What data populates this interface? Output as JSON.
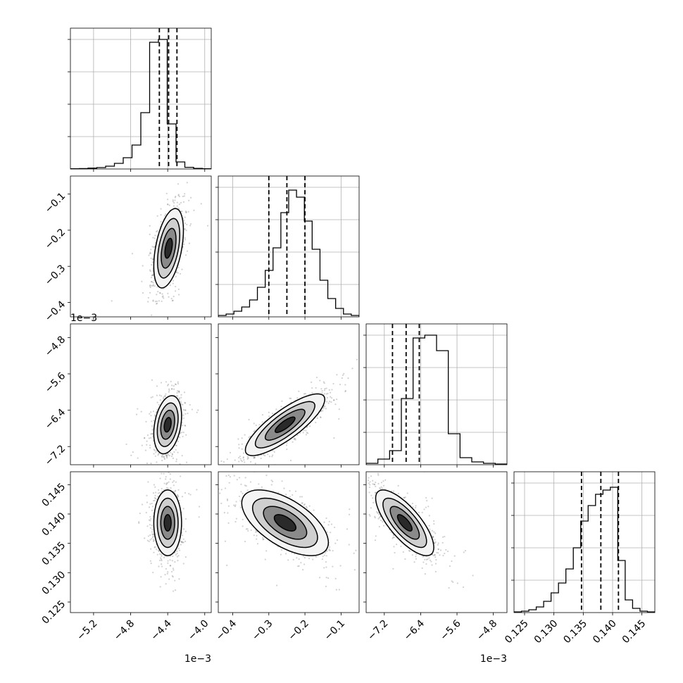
{
  "chart_data": {
    "type": "corner",
    "n_params": 4,
    "colors": {
      "line": "#000000",
      "grid": "#b0b0b0",
      "scatter": "#000000",
      "fill_dark": "#000000",
      "fill_light": "#f2f2f2"
    },
    "params": [
      {
        "range": [
          -5.45,
          -3.93
        ],
        "ticks": [
          -5.2,
          -4.8,
          -4.4,
          -4.0
        ],
        "tick_labels": [
          "−5.2",
          "−4.8",
          "−4.4",
          "−4.0"
        ],
        "offset_label": "1e−3",
        "quantiles": [
          -4.49,
          -4.39,
          -4.3
        ],
        "hist": [
          0.002,
          0.003,
          0.006,
          0.01,
          0.02,
          0.04,
          0.08,
          0.17,
          0.4,
          0.9,
          0.92,
          0.32,
          0.05,
          0.012,
          0.004,
          0.002
        ]
      },
      {
        "range": [
          -0.44,
          -0.05
        ],
        "ticks": [
          -0.4,
          -0.3,
          -0.2,
          -0.1
        ],
        "tick_labels": [
          "−0.4",
          "−0.3",
          "−0.2",
          "−0.1"
        ],
        "offset_label": "",
        "quantiles": [
          -0.3,
          -0.25,
          -0.2
        ],
        "hist": [
          0.01,
          0.02,
          0.04,
          0.07,
          0.12,
          0.21,
          0.33,
          0.49,
          0.74,
          0.9,
          0.85,
          0.68,
          0.48,
          0.26,
          0.13,
          0.06,
          0.02,
          0.01
        ]
      },
      {
        "range": [
          -7.6,
          -4.5
        ],
        "ticks": [
          -7.2,
          -6.4,
          -5.6,
          -4.8
        ],
        "tick_labels": [
          "−7.2",
          "−6.4",
          "−5.6",
          "−4.8"
        ],
        "offset_label": "1e−3",
        "quantiles": [
          -7.02,
          -6.72,
          -6.43
        ],
        "hist": [
          0.01,
          0.04,
          0.1,
          0.47,
          0.9,
          0.92,
          0.81,
          0.22,
          0.05,
          0.02,
          0.01,
          0.005
        ]
      },
      {
        "range": [
          0.1232,
          0.1472
        ],
        "ticks": [
          0.125,
          0.13,
          0.135,
          0.14,
          0.145
        ],
        "tick_labels": [
          "0.125",
          "0.130",
          "0.135",
          "0.140",
          "0.145"
        ],
        "offset_label": "",
        "quantiles": [
          0.1347,
          0.138,
          0.141
        ],
        "hist": [
          0.005,
          0.01,
          0.02,
          0.04,
          0.08,
          0.14,
          0.21,
          0.31,
          0.46,
          0.65,
          0.76,
          0.84,
          0.87,
          0.89,
          0.37,
          0.09,
          0.03,
          0.01,
          0.005
        ]
      }
    ],
    "pairs": [
      {
        "row": 1,
        "col": 0,
        "center": [
          -4.39,
          -0.25
        ],
        "sd": [
          0.08,
          0.055
        ],
        "rho": 0.45,
        "levels": [
          0.5,
          1.0,
          1.5
        ]
      },
      {
        "row": 2,
        "col": 0,
        "center": [
          -4.4,
          -6.72
        ],
        "sd": [
          0.075,
          0.32
        ],
        "rho": 0.3,
        "levels": [
          0.5,
          1.0,
          1.5
        ]
      },
      {
        "row": 2,
        "col": 1,
        "center": [
          -0.255,
          -6.72
        ],
        "sd": [
          0.055,
          0.34
        ],
        "rho": 0.82,
        "levels": [
          0.5,
          1.0,
          1.5
        ]
      },
      {
        "row": 3,
        "col": 0,
        "center": [
          -4.4,
          0.1385
        ],
        "sd": [
          0.075,
          0.0028
        ],
        "rho": 0.0,
        "levels": [
          0.5,
          1.0,
          1.5
        ]
      },
      {
        "row": 3,
        "col": 1,
        "center": [
          -0.255,
          0.1385
        ],
        "sd": [
          0.06,
          0.0028
        ],
        "rho": -0.6,
        "levels": [
          0.5,
          1.0,
          1.5
        ]
      },
      {
        "row": 3,
        "col": 2,
        "center": [
          -6.75,
          0.1385
        ],
        "sd": [
          0.32,
          0.0028
        ],
        "rho": -0.75,
        "levels": [
          0.5,
          1.0,
          1.5
        ]
      }
    ]
  }
}
